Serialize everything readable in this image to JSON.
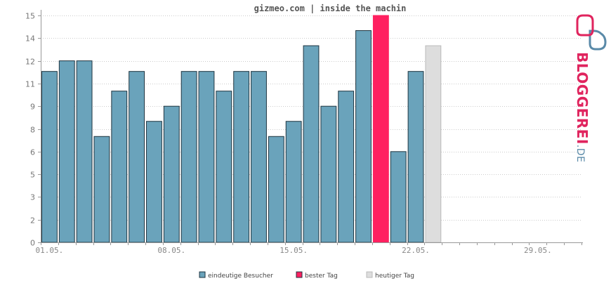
{
  "chart_data": {
    "type": "bar",
    "title": "gizmeo.com | inside the machin",
    "ylim": [
      0,
      15
    ],
    "y_ticks": [
      {
        "value": 0,
        "label": "0"
      },
      {
        "value": 1.5,
        "label": "2"
      },
      {
        "value": 3,
        "label": "3"
      },
      {
        "value": 4.5,
        "label": "5"
      },
      {
        "value": 6,
        "label": "6"
      },
      {
        "value": 7.5,
        "label": "8"
      },
      {
        "value": 9,
        "label": "9"
      },
      {
        "value": 10.5,
        "label": "11"
      },
      {
        "value": 12,
        "label": "12"
      },
      {
        "value": 13.5,
        "label": "14"
      },
      {
        "value": 15,
        "label": "15"
      }
    ],
    "x_slots": 31,
    "x_tick_labels": [
      {
        "slot": 0,
        "label": "01.05."
      },
      {
        "slot": 7,
        "label": "08.05."
      },
      {
        "slot": 14,
        "label": "15.05."
      },
      {
        "slot": 21,
        "label": "22.05."
      },
      {
        "slot": 28,
        "label": "29.05."
      }
    ],
    "grid": true,
    "legend_position": "bottom",
    "colors": {
      "eindeutige_besucher": "#6aa3bb",
      "bester_tag": "#ff2060",
      "heutiger_tag": "#dddddd",
      "bar_stroke": "#1f3540",
      "today_stroke": "#bbbbbb",
      "axis": "#999999",
      "grid": "#cccccc"
    },
    "series": [
      {
        "name": "eindeutige Besucher",
        "values": [
          11.3,
          12,
          12,
          7,
          10,
          11.3,
          8,
          9,
          11.3,
          11.3,
          10,
          11.3,
          11.3,
          7,
          8,
          13,
          9,
          10,
          14,
          null,
          6,
          11.3,
          null
        ]
      },
      {
        "name": "bester Tag",
        "values": [
          null,
          null,
          null,
          null,
          null,
          null,
          null,
          null,
          null,
          null,
          null,
          null,
          null,
          null,
          null,
          null,
          null,
          null,
          null,
          15,
          null,
          null,
          null
        ]
      },
      {
        "name": "heutiger Tag",
        "values": [
          null,
          null,
          null,
          null,
          null,
          null,
          null,
          null,
          null,
          null,
          null,
          null,
          null,
          null,
          null,
          null,
          null,
          null,
          null,
          null,
          null,
          null,
          13
        ]
      }
    ],
    "legend": [
      {
        "label": "eindeutige Besucher",
        "color": "#6aa3bb"
      },
      {
        "label": "bester Tag",
        "color": "#ff2060"
      },
      {
        "label": "heutiger Tag",
        "color": "#dddddd"
      }
    ]
  },
  "brand": {
    "name": "BLOGGEREI",
    "suffix": ".DE",
    "colors": {
      "primary": "#e0245e",
      "secondary": "#5a8aa8"
    }
  }
}
